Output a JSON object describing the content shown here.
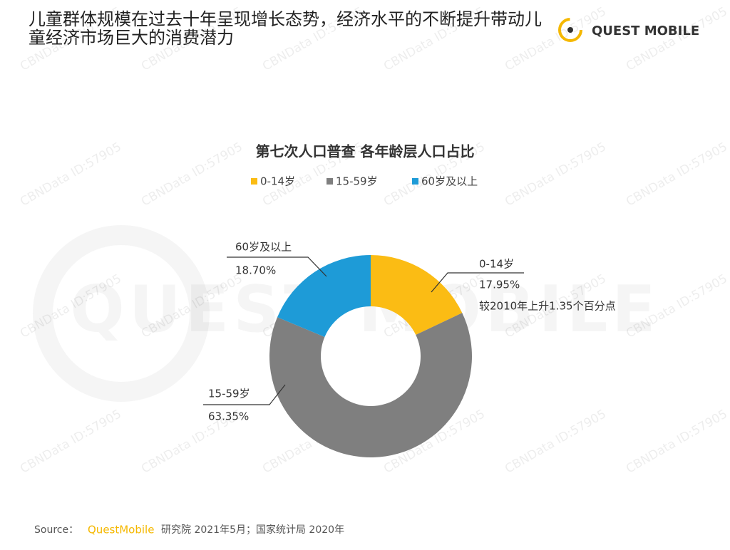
{
  "header": {
    "title": "儿童群体规模在过去十年呈现增长态势，经济水平的不断提升带动儿童经济市场巨大的消费潜力",
    "logo": "QUEST MOBILE"
  },
  "watermark": "CBNData ID:57905",
  "chart_data": {
    "type": "donut",
    "title": "第七次人口普查 各年龄层人口占比",
    "categories": [
      "0-14岁",
      "15-59岁",
      "60岁及以上"
    ],
    "values": [
      17.95,
      63.35,
      18.7
    ],
    "value_labels": [
      "17.95%",
      "63.35%",
      "18.70%"
    ],
    "colors": [
      "#fbbc14",
      "#7f7f7f",
      "#1e9bd7"
    ],
    "annotation": "较2010年上升1.35个百分点",
    "legend": "top"
  },
  "source": {
    "label": "Source：",
    "brand": "QuestMobile",
    "text": "研究院 2021年5月；国家统计局 2020年"
  }
}
